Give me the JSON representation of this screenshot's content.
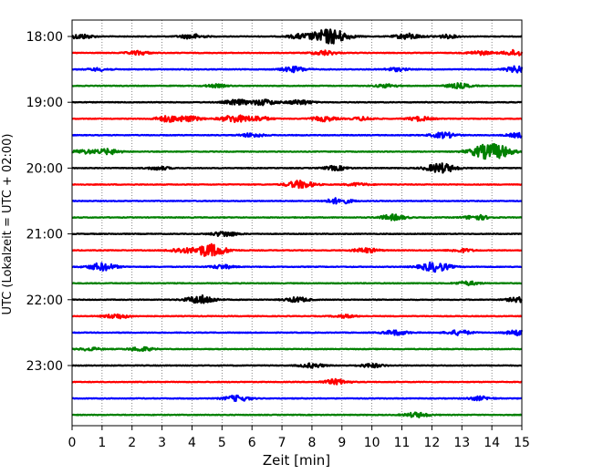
{
  "chart_data": {
    "type": "line",
    "title": "",
    "xlabel": "Zeit  [min]",
    "ylabel": "UTC (Lokalzeit = UTC + 02:00)",
    "xlim": [
      0,
      15
    ],
    "x_ticks": [
      0,
      1,
      2,
      3,
      4,
      5,
      6,
      7,
      8,
      9,
      10,
      11,
      12,
      13,
      14,
      15
    ],
    "y_tick_labels": [
      "18:00",
      "19:00",
      "20:00",
      "21:00",
      "22:00",
      "23:00"
    ],
    "y_tick_trace_index": [
      0,
      4,
      8,
      12,
      16,
      20
    ],
    "trace_minutes": 15,
    "grid_x": true,
    "grid_style": "dotted",
    "colors": [
      "#000000",
      "#ff0000",
      "#0000ff",
      "#008000"
    ],
    "traces": [
      {
        "start": "18:00",
        "color": "#000000",
        "bursts": [
          [
            0.3,
            0.5
          ],
          [
            4.0,
            0.5
          ],
          [
            7.6,
            0.45
          ],
          [
            8.6,
            1.6
          ],
          [
            11.2,
            0.6
          ],
          [
            12.5,
            0.35
          ]
        ]
      },
      {
        "start": "18:15",
        "color": "#ff0000",
        "bursts": [
          [
            2.2,
            0.4
          ],
          [
            8.4,
            0.5
          ],
          [
            13.6,
            0.4
          ],
          [
            14.8,
            0.6
          ]
        ]
      },
      {
        "start": "18:30",
        "color": "#0000ff",
        "bursts": [
          [
            0.9,
            0.3
          ],
          [
            7.4,
            0.55
          ],
          [
            10.8,
            0.35
          ],
          [
            14.9,
            0.7
          ]
        ]
      },
      {
        "start": "18:45",
        "color": "#008000",
        "bursts": [
          [
            4.8,
            0.3
          ],
          [
            10.5,
            0.35
          ],
          [
            12.9,
            0.5
          ]
        ]
      },
      {
        "start": "19:00",
        "color": "#000000",
        "bursts": [
          [
            5.5,
            0.55
          ],
          [
            6.4,
            0.6
          ],
          [
            7.6,
            0.5
          ]
        ]
      },
      {
        "start": "19:15",
        "color": "#ff0000",
        "bursts": [
          [
            3.2,
            0.6
          ],
          [
            3.9,
            0.5
          ],
          [
            5.4,
            0.75
          ],
          [
            6.2,
            0.5
          ],
          [
            8.4,
            0.5
          ],
          [
            9.7,
            0.35
          ],
          [
            11.6,
            0.45
          ]
        ]
      },
      {
        "start": "19:30",
        "color": "#0000ff",
        "bursts": [
          [
            6.0,
            0.4
          ],
          [
            12.4,
            0.6
          ],
          [
            14.9,
            0.45
          ]
        ]
      },
      {
        "start": "19:45",
        "color": "#008000",
        "bursts": [
          [
            0.4,
            0.4
          ],
          [
            1.2,
            0.55
          ],
          [
            13.8,
            1.3
          ],
          [
            14.3,
            0.8
          ]
        ]
      },
      {
        "start": "20:00",
        "color": "#000000",
        "bursts": [
          [
            2.9,
            0.35
          ],
          [
            8.8,
            0.45
          ],
          [
            12.3,
            1.0
          ]
        ]
      },
      {
        "start": "20:15",
        "color": "#ff0000",
        "bursts": [
          [
            7.6,
            0.8
          ],
          [
            9.5,
            0.3
          ]
        ]
      },
      {
        "start": "20:30",
        "color": "#0000ff",
        "bursts": [
          [
            8.9,
            0.6
          ]
        ]
      },
      {
        "start": "20:45",
        "color": "#008000",
        "bursts": [
          [
            10.7,
            0.6
          ],
          [
            13.5,
            0.5
          ]
        ]
      },
      {
        "start": "21:00",
        "color": "#000000",
        "bursts": [
          [
            5.1,
            0.55
          ]
        ]
      },
      {
        "start": "21:15",
        "color": "#ff0000",
        "bursts": [
          [
            3.6,
            0.45
          ],
          [
            4.6,
            1.3
          ],
          [
            9.8,
            0.5
          ],
          [
            13.0,
            0.35
          ]
        ]
      },
      {
        "start": "21:30",
        "color": "#0000ff",
        "bursts": [
          [
            1.0,
            0.8
          ],
          [
            5.0,
            0.4
          ],
          [
            12.1,
            1.0
          ]
        ]
      },
      {
        "start": "21:45",
        "color": "#008000",
        "bursts": [
          [
            13.2,
            0.4
          ]
        ]
      },
      {
        "start": "22:00",
        "color": "#000000",
        "bursts": [
          [
            4.3,
            0.9
          ],
          [
            7.5,
            0.5
          ],
          [
            14.9,
            0.5
          ]
        ]
      },
      {
        "start": "22:15",
        "color": "#ff0000",
        "bursts": [
          [
            1.5,
            0.5
          ],
          [
            9.1,
            0.3
          ]
        ]
      },
      {
        "start": "22:30",
        "color": "#0000ff",
        "bursts": [
          [
            10.8,
            0.5
          ],
          [
            12.9,
            0.5
          ],
          [
            14.9,
            0.55
          ]
        ]
      },
      {
        "start": "22:45",
        "color": "#008000",
        "bursts": [
          [
            0.6,
            0.3
          ],
          [
            2.3,
            0.45
          ]
        ]
      },
      {
        "start": "23:00",
        "color": "#000000",
        "bursts": [
          [
            8.0,
            0.45
          ],
          [
            10.0,
            0.4
          ]
        ]
      },
      {
        "start": "23:15",
        "color": "#ff0000",
        "bursts": [
          [
            8.8,
            0.55
          ]
        ]
      },
      {
        "start": "23:30",
        "color": "#0000ff",
        "bursts": [
          [
            5.5,
            0.6
          ],
          [
            13.6,
            0.4
          ]
        ]
      },
      {
        "start": "23:45",
        "color": "#008000",
        "bursts": [
          [
            11.5,
            0.5
          ]
        ]
      }
    ]
  }
}
